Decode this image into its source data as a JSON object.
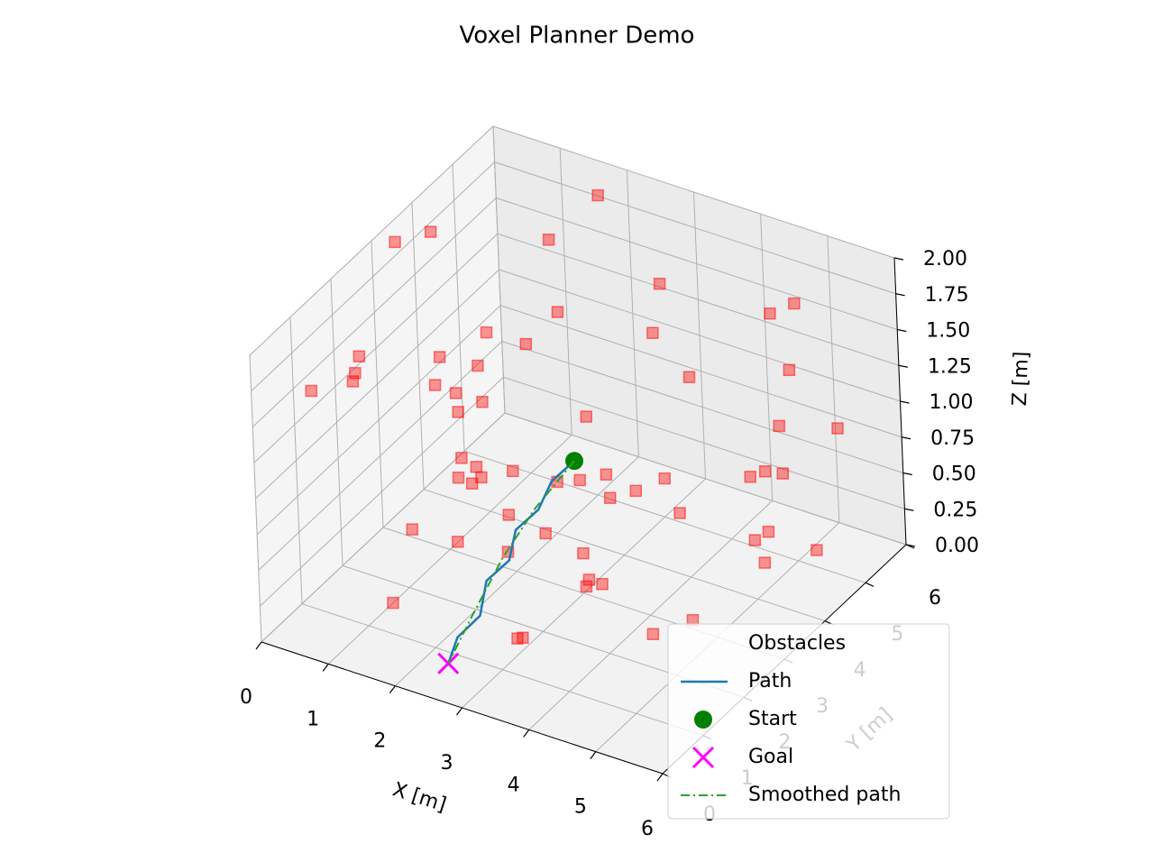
{
  "chart_data": {
    "type": "scatter3d",
    "title": "Voxel Planner Demo",
    "xlabel": "X [m]",
    "ylabel": "Y [m]",
    "zlabel": "Z [m]",
    "xlim": [
      0,
      6
    ],
    "ylim": [
      0,
      6
    ],
    "zlim": [
      0,
      2
    ],
    "xticks": [
      0,
      1,
      2,
      3,
      4,
      5,
      6
    ],
    "yticks": [
      0,
      1,
      2,
      3,
      4,
      5,
      6
    ],
    "zticks": [
      {
        "value": 0,
        "label": "0.00"
      },
      {
        "value": 0.25,
        "label": "0.25"
      },
      {
        "value": 0.5,
        "label": "0.50"
      },
      {
        "value": 0.75,
        "label": "0.75"
      },
      {
        "value": 1,
        "label": "1.00"
      },
      {
        "value": 1.25,
        "label": "1.25"
      },
      {
        "value": 1.5,
        "label": "1.50"
      },
      {
        "value": 1.75,
        "label": "1.75"
      },
      {
        "value": 2,
        "label": "2.00"
      }
    ],
    "grid": true,
    "legend": "lower right",
    "series": [
      {
        "name": "Obstacles",
        "color": "#ff0000",
        "marker": "square",
        "x": [
          0.4,
          1.2,
          2.8,
          4.5,
          5.1,
          3.3,
          0.9,
          2.1,
          5.7,
          1.6,
          4.0,
          3.8,
          0.2,
          2.5,
          5.4,
          1.0,
          3.1,
          4.7,
          0.6,
          2.9,
          5.9,
          1.8,
          3.6,
          4.2,
          0.3,
          2.2,
          5.0,
          1.4,
          3.9,
          4.9,
          0.8,
          2.6,
          5.6,
          1.1,
          3.4,
          4.4,
          0.5,
          2.0,
          5.3,
          1.7,
          3.0,
          4.6,
          0.1,
          2.4,
          5.8,
          1.3,
          3.7,
          4.1,
          0.7,
          2.7,
          5.2,
          1.9,
          3.2,
          4.8,
          0.4,
          2.3,
          5.5,
          1.5,
          3.5,
          4.3
        ],
        "y": [
          0.8,
          3.5,
          5.2,
          1.1,
          4.4,
          2.6,
          5.8,
          0.4,
          3.1,
          2.0,
          5.5,
          0.9,
          4.1,
          3.8,
          1.6,
          5.0,
          0.3,
          2.9,
          4.7,
          1.4,
          3.3,
          5.6,
          2.2,
          0.6,
          3.9,
          4.9,
          1.9,
          2.7,
          0.1,
          5.3,
          3.6,
          1.2,
          4.5,
          0.7,
          2.4,
          5.9,
          1.7,
          3.0,
          4.2,
          0.5,
          5.1,
          2.1,
          3.4,
          1.0,
          4.8,
          2.8,
          0.2,
          5.7,
          1.5,
          3.7,
          4.0,
          2.5,
          5.4,
          0.9,
          4.3,
          1.8,
          3.2,
          5.0,
          0.6,
          2.3
        ],
        "z": [
          1.6,
          0.4,
          1.2,
          0.8,
          1.9,
          0.2,
          1.4,
          1.0,
          0.6,
          1.7,
          0.3,
          1.1,
          1.8,
          0.5,
          1.3,
          0.9,
          1.5,
          0.1,
          1.0,
          0.7,
          1.2,
          1.9,
          0.4,
          1.6,
          0.8,
          0.2,
          1.4,
          1.1,
          0.6,
          1.7,
          0.9,
          1.3,
          0.3,
          1.8,
          0.5,
          1.0,
          1.5,
          0.7,
          1.2,
          0.4,
          1.6,
          0.2,
          1.9,
          0.8,
          1.1,
          0.6,
          1.4,
          0.3,
          1.7,
          1.0,
          0.5,
          1.3,
          0.9,
          1.5,
          0.2,
          1.8,
          0.7,
          1.2,
          0.4,
          1.1
        ]
      },
      {
        "name": "Path",
        "color": "#1f77b4",
        "marker": "line",
        "x": [
          2.3,
          2.2,
          2.3,
          2.2,
          2.4,
          2.3,
          2.5,
          2.4,
          2.5
        ],
        "y": [
          4.0,
          3.6,
          3.1,
          2.7,
          2.2,
          1.8,
          1.3,
          0.9,
          0.5
        ],
        "z": [
          0.55,
          0.5,
          0.45,
          0.4,
          0.35,
          0.3,
          0.22,
          0.16,
          0.1
        ]
      },
      {
        "name": "Start",
        "color": "#008000",
        "marker": "circle",
        "x": [
          2.3
        ],
        "y": [
          4.0
        ],
        "z": [
          0.55
        ]
      },
      {
        "name": "Goal",
        "color": "#ff00ff",
        "marker": "x",
        "x": [
          2.5
        ],
        "y": [
          0.5
        ],
        "z": [
          0.1
        ]
      },
      {
        "name": "Smoothed path",
        "color": "#2ca02c",
        "marker": "dashdot",
        "x": [
          2.3,
          2.25,
          2.3,
          2.4,
          2.5
        ],
        "y": [
          4.0,
          3.1,
          2.2,
          1.3,
          0.5
        ],
        "z": [
          0.55,
          0.45,
          0.35,
          0.22,
          0.1
        ]
      }
    ]
  }
}
